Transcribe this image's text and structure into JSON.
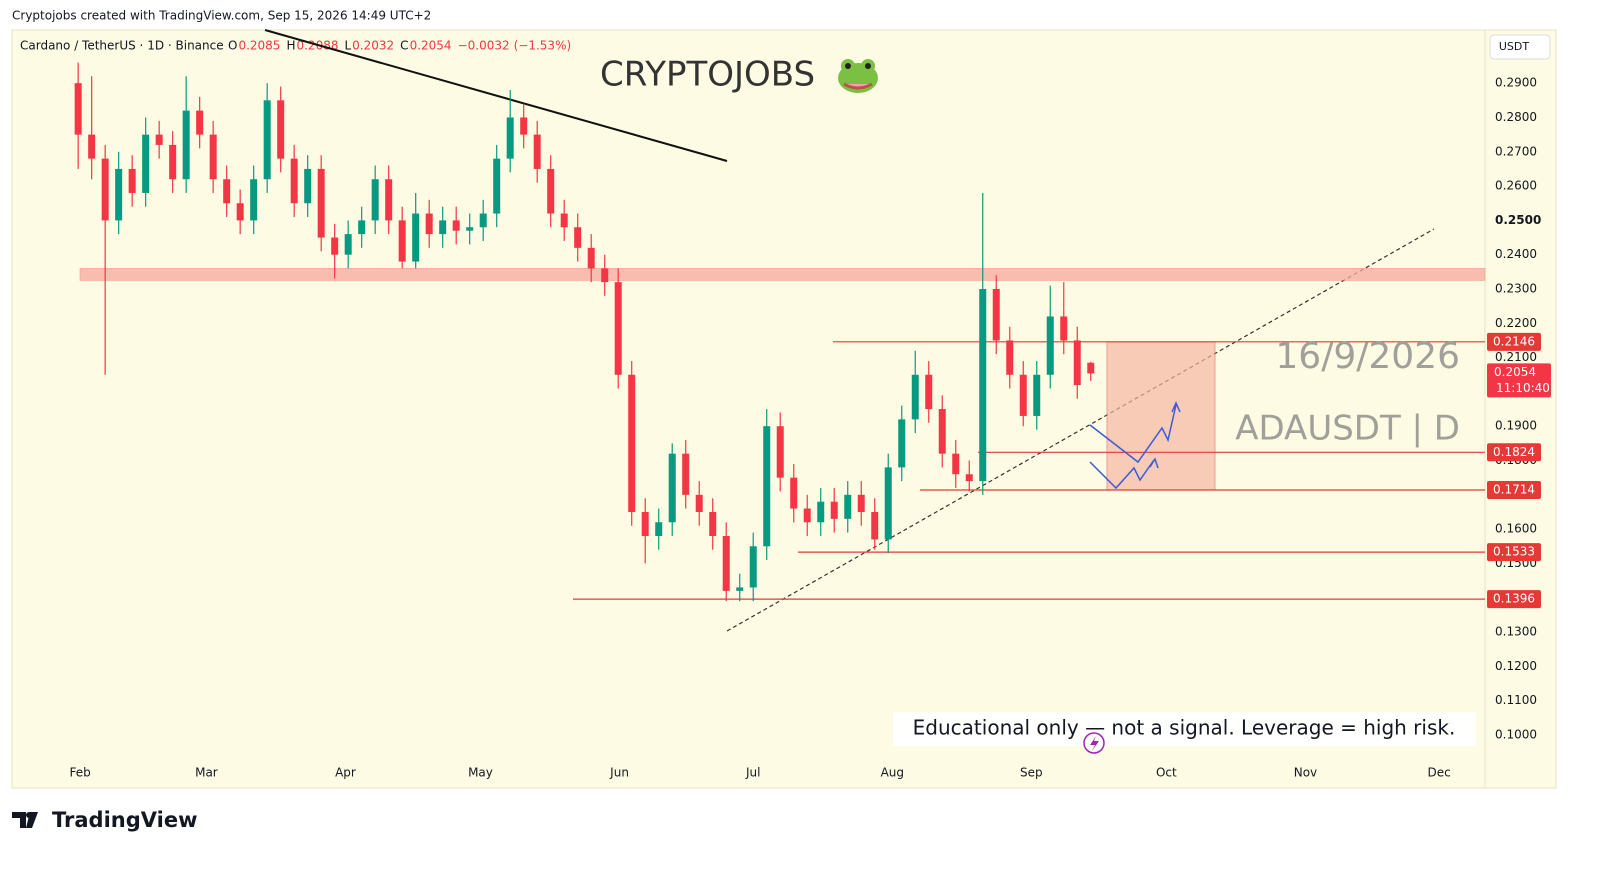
{
  "header": {
    "credit": "Cryptojobs created with TradingView.com, Sep 15, 2026 14:49 UTC+2"
  },
  "footer": {
    "logo": "TradingView"
  },
  "chart_data": {
    "type": "candlestick",
    "title": "CRYPTOJOBS",
    "symbol": "Cardano / TetherUS · 1D · Binance",
    "ohlc_legend": {
      "open_prefix": "O",
      "open": 0.2085,
      "high_prefix": "H",
      "high": 0.2088,
      "low_prefix": "L",
      "low": 0.2032,
      "close_prefix": "C",
      "close": 0.2054,
      "change": {
        "value": -0.0032,
        "label": "−0.0032"
      },
      "change_pct": {
        "value": -1.53,
        "label": "(−1.53%)"
      }
    },
    "currency": "USDT",
    "up_color": "#089981",
    "down_color": "#f23645",
    "candles": [
      [
        0.29,
        0.296,
        0.265,
        0.275
      ],
      [
        0.275,
        0.292,
        0.262,
        0.268
      ],
      [
        0.268,
        0.272,
        0.205,
        0.25
      ],
      [
        0.25,
        0.27,
        0.246,
        0.265
      ],
      [
        0.265,
        0.269,
        0.254,
        0.258
      ],
      [
        0.258,
        0.28,
        0.254,
        0.275
      ],
      [
        0.275,
        0.279,
        0.268,
        0.272
      ],
      [
        0.272,
        0.276,
        0.258,
        0.262
      ],
      [
        0.262,
        0.292,
        0.258,
        0.282
      ],
      [
        0.282,
        0.286,
        0.271,
        0.275
      ],
      [
        0.275,
        0.279,
        0.258,
        0.262
      ],
      [
        0.262,
        0.266,
        0.251,
        0.255
      ],
      [
        0.255,
        0.259,
        0.246,
        0.25
      ],
      [
        0.25,
        0.266,
        0.246,
        0.262
      ],
      [
        0.262,
        0.29,
        0.258,
        0.285
      ],
      [
        0.285,
        0.289,
        0.264,
        0.268
      ],
      [
        0.268,
        0.272,
        0.251,
        0.255
      ],
      [
        0.255,
        0.269,
        0.251,
        0.265
      ],
      [
        0.265,
        0.269,
        0.241,
        0.245
      ],
      [
        0.245,
        0.249,
        0.233,
        0.24
      ],
      [
        0.24,
        0.25,
        0.236,
        0.246
      ],
      [
        0.246,
        0.254,
        0.242,
        0.25
      ],
      [
        0.25,
        0.266,
        0.246,
        0.262
      ],
      [
        0.262,
        0.266,
        0.246,
        0.25
      ],
      [
        0.25,
        0.254,
        0.236,
        0.238
      ],
      [
        0.238,
        0.258,
        0.236,
        0.252
      ],
      [
        0.252,
        0.256,
        0.242,
        0.246
      ],
      [
        0.246,
        0.254,
        0.242,
        0.25
      ],
      [
        0.25,
        0.254,
        0.243,
        0.247
      ],
      [
        0.247,
        0.252,
        0.243,
        0.248
      ],
      [
        0.248,
        0.256,
        0.244,
        0.252
      ],
      [
        0.252,
        0.272,
        0.248,
        0.268
      ],
      [
        0.268,
        0.288,
        0.264,
        0.28
      ],
      [
        0.28,
        0.284,
        0.271,
        0.275
      ],
      [
        0.275,
        0.279,
        0.261,
        0.265
      ],
      [
        0.265,
        0.269,
        0.248,
        0.252
      ],
      [
        0.252,
        0.256,
        0.244,
        0.248
      ],
      [
        0.248,
        0.252,
        0.238,
        0.242
      ],
      [
        0.242,
        0.246,
        0.232,
        0.236
      ],
      [
        0.236,
        0.24,
        0.228,
        0.232
      ],
      [
        0.232,
        0.236,
        0.201,
        0.205
      ],
      [
        0.205,
        0.209,
        0.161,
        0.165
      ],
      [
        0.165,
        0.169,
        0.15,
        0.158
      ],
      [
        0.158,
        0.166,
        0.154,
        0.162
      ],
      [
        0.162,
        0.185,
        0.158,
        0.182
      ],
      [
        0.182,
        0.186,
        0.166,
        0.17
      ],
      [
        0.17,
        0.174,
        0.161,
        0.165
      ],
      [
        0.165,
        0.169,
        0.154,
        0.158
      ],
      [
        0.158,
        0.162,
        0.139,
        0.142
      ],
      [
        0.142,
        0.147,
        0.139,
        0.143
      ],
      [
        0.143,
        0.159,
        0.139,
        0.155
      ],
      [
        0.155,
        0.195,
        0.151,
        0.19
      ],
      [
        0.19,
        0.194,
        0.171,
        0.175
      ],
      [
        0.175,
        0.179,
        0.162,
        0.166
      ],
      [
        0.166,
        0.17,
        0.158,
        0.162
      ],
      [
        0.162,
        0.172,
        0.158,
        0.168
      ],
      [
        0.168,
        0.172,
        0.159,
        0.163
      ],
      [
        0.163,
        0.174,
        0.159,
        0.17
      ],
      [
        0.17,
        0.174,
        0.161,
        0.165
      ],
      [
        0.165,
        0.169,
        0.154,
        0.157
      ],
      [
        0.157,
        0.182,
        0.153,
        0.178
      ],
      [
        0.178,
        0.196,
        0.174,
        0.192
      ],
      [
        0.192,
        0.212,
        0.188,
        0.205
      ],
      [
        0.205,
        0.209,
        0.191,
        0.195
      ],
      [
        0.195,
        0.199,
        0.178,
        0.182
      ],
      [
        0.182,
        0.186,
        0.172,
        0.176
      ],
      [
        0.176,
        0.18,
        0.171,
        0.174
      ],
      [
        0.174,
        0.258,
        0.17,
        0.23
      ],
      [
        0.23,
        0.234,
        0.211,
        0.215
      ],
      [
        0.215,
        0.219,
        0.201,
        0.205
      ],
      [
        0.205,
        0.209,
        0.19,
        0.193
      ],
      [
        0.193,
        0.209,
        0.189,
        0.205
      ],
      [
        0.205,
        0.231,
        0.201,
        0.222
      ],
      [
        0.222,
        0.232,
        0.211,
        0.215
      ],
      [
        0.215,
        0.219,
        0.198,
        0.202
      ],
      [
        0.2085,
        0.2088,
        0.2032,
        0.2054
      ]
    ],
    "xlim": [
      -4.9,
      104.2
    ],
    "xticks": [
      {
        "value": 0.15,
        "label": "Feb"
      },
      {
        "value": 9.5,
        "label": "Mar"
      },
      {
        "value": 19.8,
        "label": "Apr"
      },
      {
        "value": 29.8,
        "label": "May"
      },
      {
        "value": 40.1,
        "label": "Jun"
      },
      {
        "value": 50,
        "label": "Jul"
      },
      {
        "value": 60.3,
        "label": "Aug"
      },
      {
        "value": 70.6,
        "label": "Sep"
      },
      {
        "value": 80.6,
        "label": "Oct"
      },
      {
        "value": 90.9,
        "label": "Nov"
      },
      {
        "value": 100.8,
        "label": "Dec"
      }
    ],
    "ylim": [
      0.0927,
      0.3055
    ],
    "yticks": [
      {
        "value": 0.1,
        "label": "0.1000"
      },
      {
        "value": 0.11,
        "label": "0.1100"
      },
      {
        "value": 0.12,
        "label": "0.1200"
      },
      {
        "value": 0.13,
        "label": "0.1300"
      },
      {
        "value": 0.15,
        "label": "0.1500"
      },
      {
        "value": 0.16,
        "label": "0.1600"
      },
      {
        "value": 0.18,
        "label": "0.1800"
      },
      {
        "value": 0.19,
        "label": "0.1900"
      },
      {
        "value": 0.21,
        "label": "0.2100"
      },
      {
        "value": 0.22,
        "label": "0.2200"
      },
      {
        "value": 0.23,
        "label": "0.2300"
      },
      {
        "value": 0.24,
        "label": "0.2400"
      },
      {
        "value": 0.25,
        "label": "0.2500"
      },
      {
        "value": 0.26,
        "label": "0.2600"
      },
      {
        "value": 0.27,
        "label": "0.2700"
      },
      {
        "value": 0.28,
        "label": "0.2800"
      },
      {
        "value": 0.29,
        "label": "0.2900"
      }
    ],
    "resistance_zone": [
      0.2325,
      0.236
    ],
    "levels": [
      0.2146,
      0.1824,
      0.1714,
      0.1533,
      0.1396
    ],
    "current_price": 0.2054,
    "countdown": "11:10:40",
    "position_box": [
      0.2146,
      0.1714
    ],
    "annotations": {
      "date": "16/9/2026",
      "pair": "ADAUSDT | D",
      "disclaimer": "Educational only — not a signal. Leverage  = high risk."
    }
  }
}
